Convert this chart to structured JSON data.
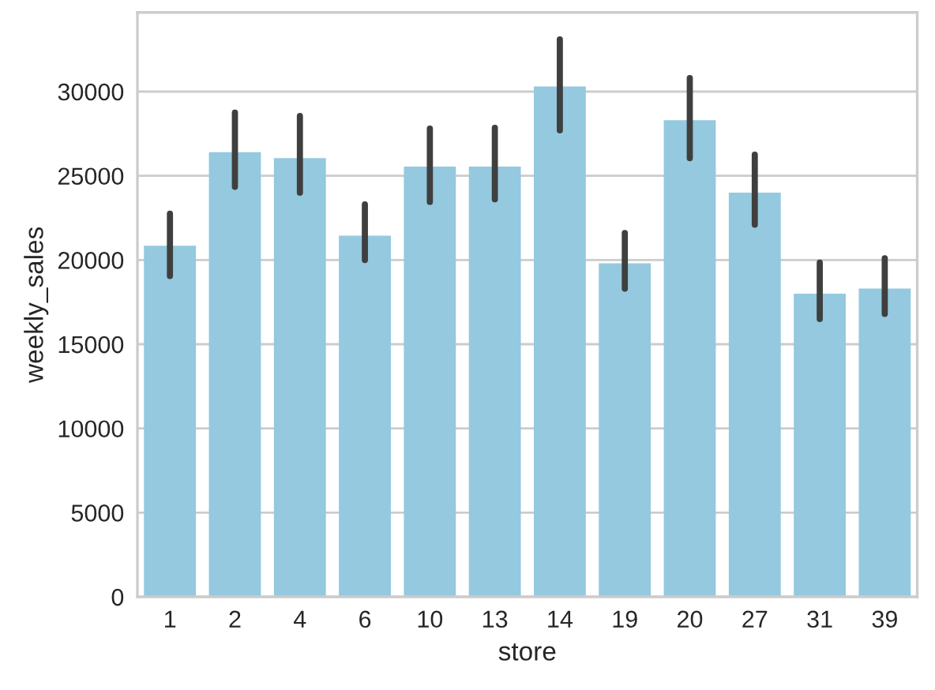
{
  "chart_data": {
    "type": "bar",
    "xlabel": "store",
    "ylabel": "weekly_sales",
    "categories": [
      "1",
      "2",
      "4",
      "6",
      "10",
      "13",
      "14",
      "19",
      "20",
      "27",
      "31",
      "39"
    ],
    "values": [
      20850,
      26400,
      26050,
      21450,
      25550,
      25550,
      30300,
      19800,
      28300,
      24000,
      18000,
      18300
    ],
    "errors": [
      [
        19050,
        22750
      ],
      [
        24350,
        28750
      ],
      [
        24000,
        28550
      ],
      [
        20000,
        23300
      ],
      [
        23450,
        27800
      ],
      [
        23600,
        27850
      ],
      [
        27700,
        33100
      ],
      [
        18300,
        21600
      ],
      [
        26050,
        30800
      ],
      [
        22100,
        26250
      ],
      [
        16500,
        19850
      ],
      [
        16800,
        20100
      ]
    ],
    "color": "#94c9df",
    "ylim": [
      0,
      34700
    ],
    "yticks": [
      0,
      5000,
      10000,
      15000,
      20000,
      25000,
      30000
    ],
    "grid": "y"
  }
}
